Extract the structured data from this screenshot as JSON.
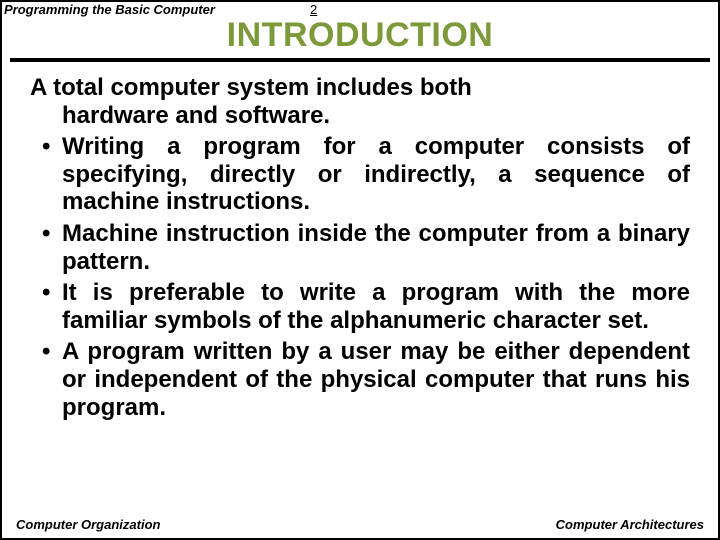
{
  "header": {
    "left": "Programming the Basic Computer",
    "page": "2"
  },
  "title": "INTRODUCTION",
  "content": {
    "lead_line1": "A total computer system includes both",
    "lead_line2": "hardware and software.",
    "bullets": [
      "Writing a program for a computer consists of specifying, directly or indirectly, a sequence of machine instructions.",
      "Machine instruction inside the computer from a binary pattern.",
      "It is preferable to write a program with the more familiar symbols of the alphanumeric character set.",
      "A program written by a user may be either dependent or independent of the physical computer that runs his program."
    ]
  },
  "footer": {
    "left": "Computer Organization",
    "right": "Computer Architectures"
  },
  "colors": {
    "title_color": "#7d9a3a",
    "text_color": "#000000",
    "background": "#ffffff",
    "rule_color": "#000000"
  }
}
